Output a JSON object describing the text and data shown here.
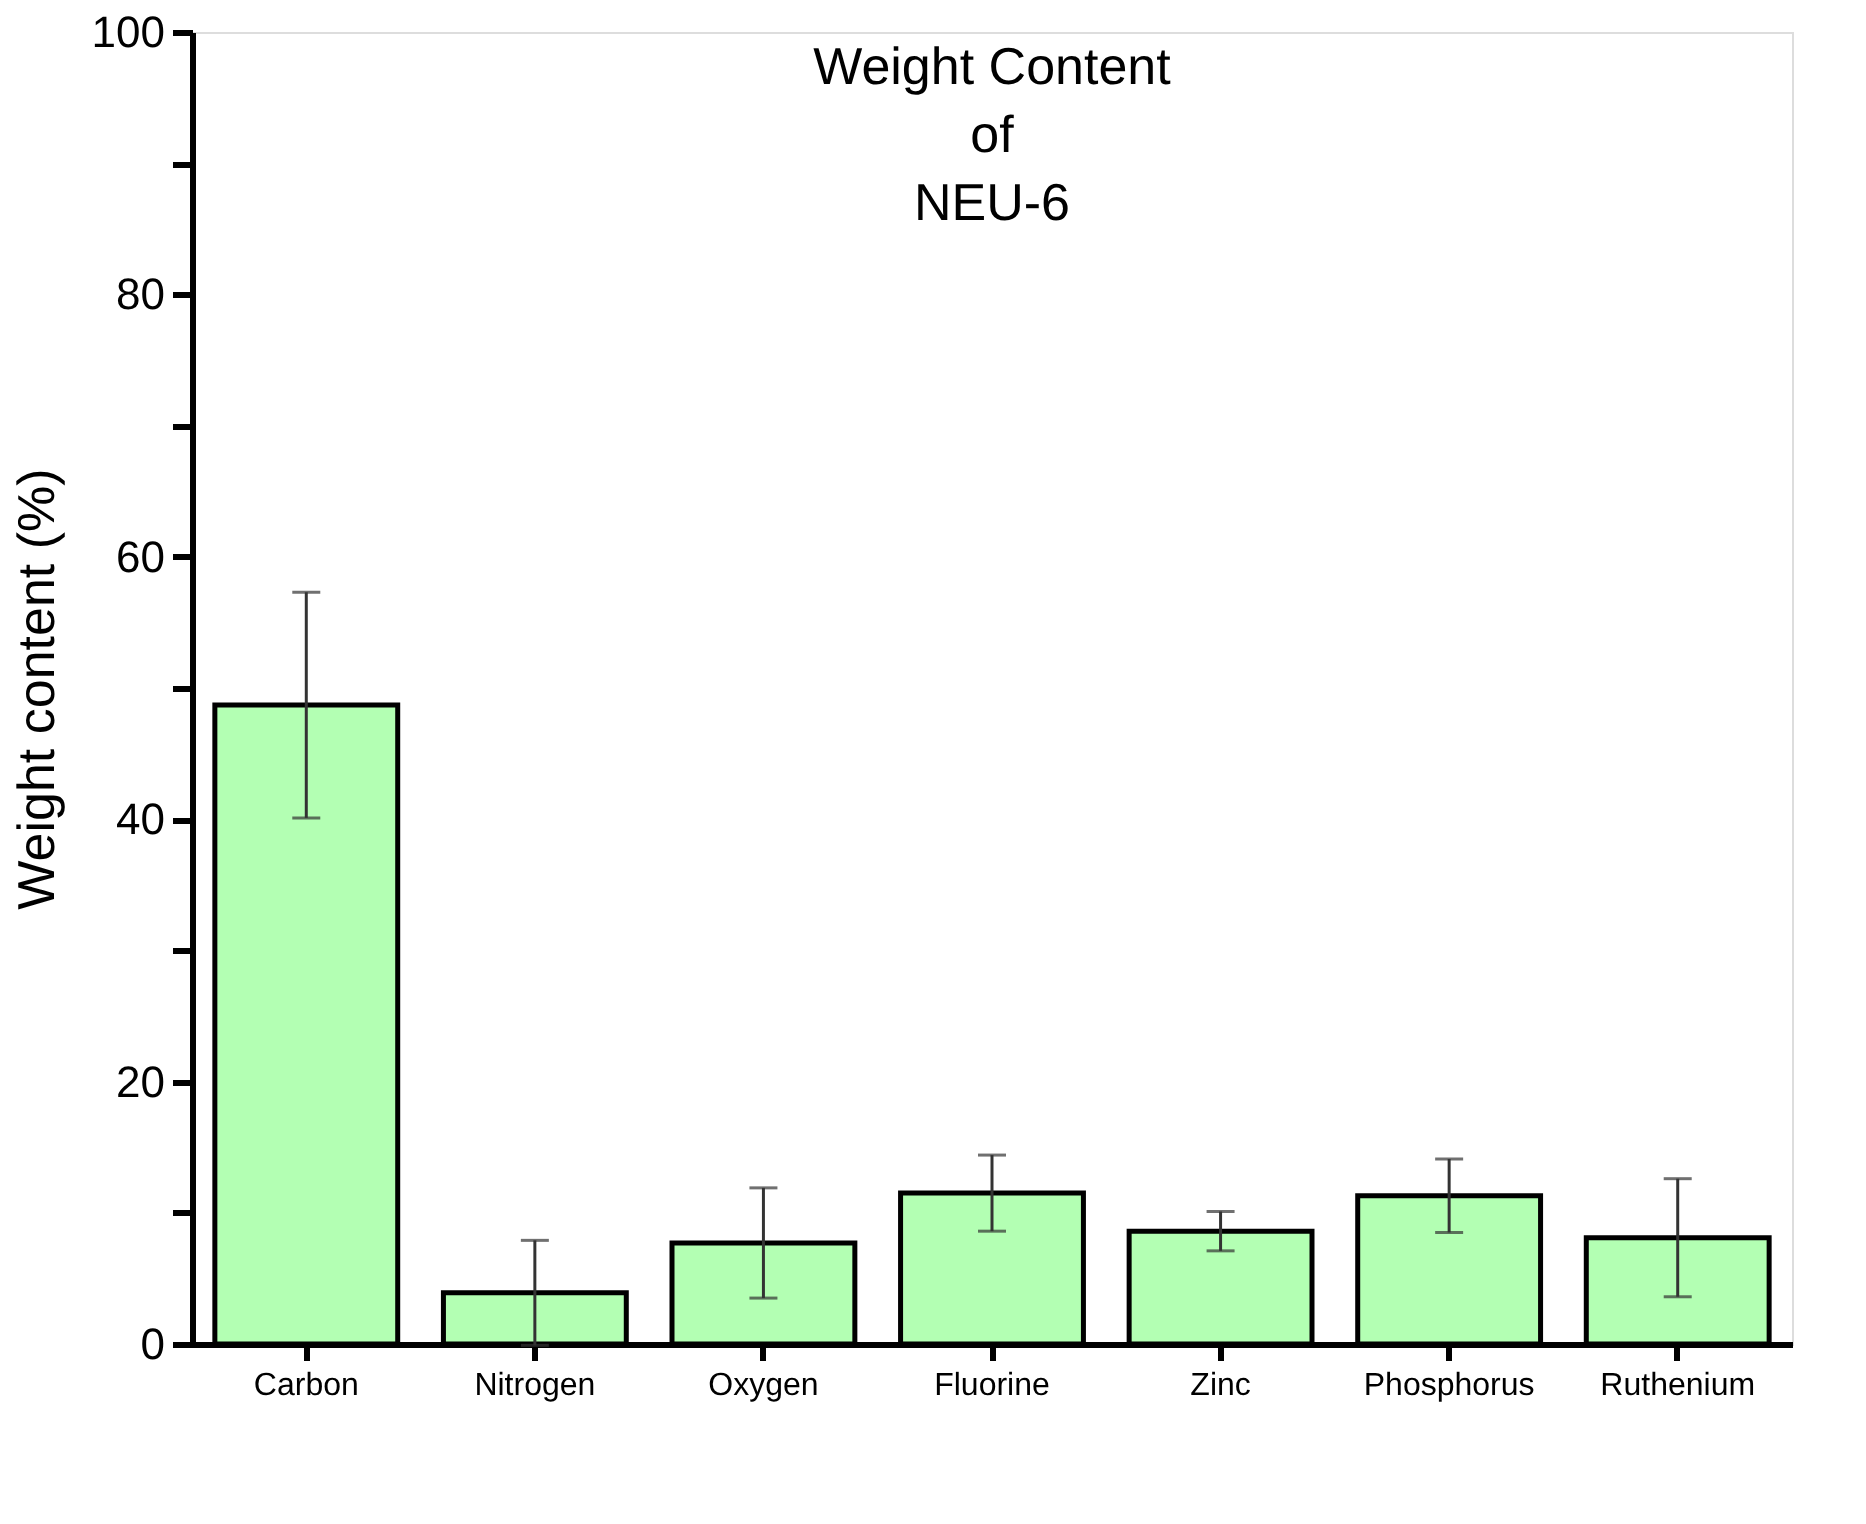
{
  "chart_data": {
    "type": "bar",
    "title": "Weight Content\nof\nNEU-6",
    "ylabel": "Weight content (%)",
    "categories": [
      "Carbon",
      "Nitrogen",
      "Oxygen",
      "Fluorine",
      "Zinc",
      "Phosphorus",
      "Ruthenium"
    ],
    "values": [
      48.7,
      3.9,
      7.7,
      11.5,
      8.6,
      11.3,
      8.1
    ],
    "errors": [
      8.6,
      4.0,
      4.2,
      2.9,
      1.5,
      2.8,
      4.5
    ],
    "color": "#b3ffb3",
    "ylim": [
      0,
      100
    ],
    "yticks": [
      0,
      {
        "value": 10,
        "label": null
      },
      20,
      {
        "value": 30,
        "label": null
      },
      40,
      {
        "value": 50,
        "label": null
      },
      60,
      {
        "value": 70,
        "label": null
      },
      80,
      {
        "value": 90,
        "label": null
      },
      100
    ],
    "grid": false
  }
}
